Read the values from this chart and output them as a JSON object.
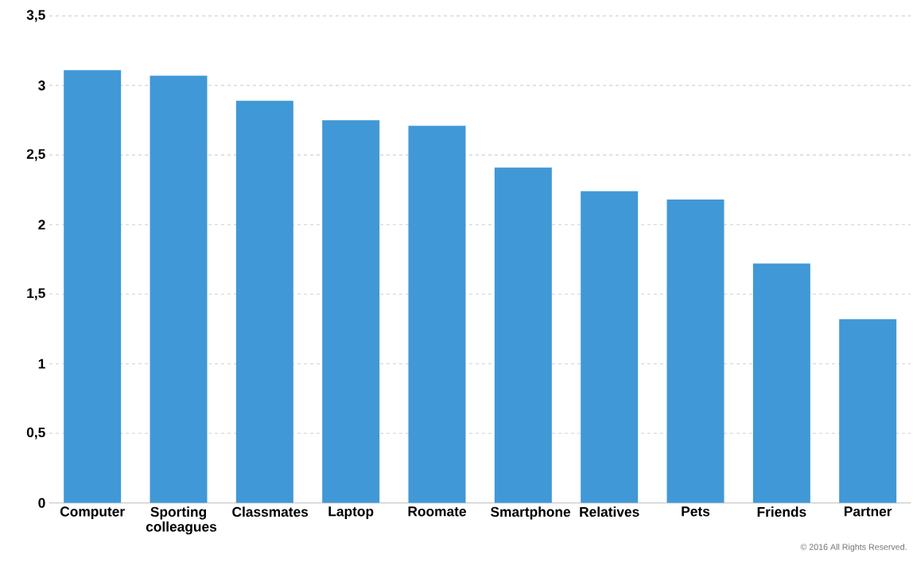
{
  "chart_data": {
    "type": "bar",
    "categories": [
      "Computer",
      "Sporting colleagues",
      "Classmates",
      "Laptop",
      "Roomate",
      "Smartphone",
      "Relatives",
      "Pets",
      "Friends",
      "Partner"
    ],
    "values": [
      3.11,
      3.07,
      2.89,
      2.75,
      2.71,
      2.41,
      2.24,
      2.18,
      1.72,
      1.32
    ],
    "color": "#4198d6",
    "ylim": [
      0,
      3.5
    ],
    "yticks": [
      0,
      {
        "value": 0.5,
        "label": "0,5"
      },
      1,
      {
        "value": 1.5,
        "label": "1,5"
      },
      2,
      {
        "value": 2.5,
        "label": "2,5"
      },
      3,
      {
        "value": 3.5,
        "label": "3,5"
      }
    ],
    "grid": "y",
    "annotations": [
      "© 2016 All Rights Reserved."
    ]
  }
}
